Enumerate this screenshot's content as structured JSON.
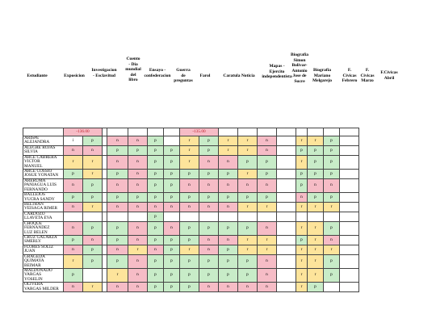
{
  "headers": [
    "Estudiante",
    "Exposicion",
    "Investigacion\n- Esclavitud",
    "Cuento\n- Dia\nmundial\ndel\nlibro",
    "Ensayo -\nconfederacion",
    "Guerra\nde\npreguntas",
    "Farol",
    "Caratula Noticia",
    "Mapas -\nEjercito\nindependentista",
    "Biografia\nSimon\nBolivar-\nAntonio\nJose de\nSucre",
    "Biografia\nMariano\nMelgarejo",
    "F.\nCivicas\nFebrero",
    "F.\nCivicas\nMarzo",
    "F.Civicas\nAbril"
  ],
  "balances": [
    "-136.00",
    "-135.00"
  ],
  "colors": {
    "p": "#c8ecc8",
    "r": "#fde49b",
    "n": "#f6bcc6",
    "negative_text": "#c0202a"
  },
  "rows": [
    {
      "name": [
        "ARISPE",
        "ALEJANDRA"
      ],
      "marks": [
        "i",
        "p",
        "",
        "n",
        "n",
        "p",
        "",
        "r",
        "p",
        "r",
        "r",
        "n",
        "",
        "r",
        "r",
        "p"
      ]
    },
    {
      "name": [
        "ALEGRE ROJAS",
        "SILVIA"
      ],
      "marks": [
        "n",
        "n",
        "",
        "p",
        "p",
        "p",
        "p",
        "r",
        "p",
        "r",
        "r",
        "n",
        "",
        "p",
        "p",
        "p"
      ]
    },
    {
      "name": [
        "ARCE CABRERA",
        "VICTOR",
        "MANUEL"
      ],
      "marks": [
        "r",
        "r",
        "",
        "n",
        "n",
        "p",
        "p",
        "r",
        "n",
        "n",
        "p",
        "p",
        "",
        "r",
        "p",
        "p"
      ]
    },
    {
      "name": [
        "ARCE COSSIO",
        "JOSUE YONATAN"
      ],
      "marks": [
        "p",
        "r",
        "",
        "p",
        "n",
        "p",
        "p",
        "p",
        "p",
        "p",
        "r",
        "p",
        "",
        "p",
        "p",
        "p"
      ]
    },
    {
      "name": [
        "ARERUMA",
        "PANIAGUA LUIS",
        "FERNANDO"
      ],
      "marks": [
        "n",
        "p",
        "",
        "n",
        "n",
        "p",
        "p",
        "n",
        "n",
        "n",
        "n",
        "n",
        "",
        "p",
        "n",
        "n"
      ]
    },
    {
      "name": [
        "BALLEJOS",
        "YUCRA SANDY"
      ],
      "marks": [
        "p",
        "p",
        "",
        "p",
        "p",
        "p",
        "p",
        "p",
        "p",
        "p",
        "p",
        "p",
        "",
        "n",
        "p",
        "p"
      ]
    },
    {
      "name": [
        "BELTRAN",
        "VEISAGA RIMER"
      ],
      "marks": [
        "n",
        "r",
        "",
        "n",
        "n",
        "n",
        "n",
        "n",
        "n",
        "n",
        "r",
        "r",
        "",
        "r",
        "r",
        "r"
      ]
    },
    {
      "name": [
        "CARDOZO",
        "LLAVETA EVA"
      ],
      "marks": [
        "",
        "",
        "",
        "",
        "",
        "p",
        "",
        "",
        "",
        "",
        "",
        "",
        "",
        "",
        "",
        ""
      ]
    },
    {
      "name": [
        "CHOQUE",
        "FERNANDEZ",
        "LUZ BELEN"
      ],
      "marks": [
        "n",
        "p",
        "",
        "p",
        "n",
        "p",
        "n",
        "p",
        "p",
        "p",
        "p",
        "n",
        "",
        "r",
        "r",
        "p"
      ]
    },
    {
      "name": [
        "CRUZ GALARZA",
        "SMERLY"
      ],
      "marks": [
        "p",
        "n",
        "",
        "p",
        "n",
        "p",
        "p",
        "p",
        "n",
        "n",
        "r",
        "r",
        "",
        "p",
        "r",
        "n"
      ]
    },
    {
      "name": [
        "FLORES SOLIZ",
        "JUAN"
      ],
      "marks": [
        "n",
        "p",
        "",
        "n",
        "r",
        "n",
        "p",
        "r",
        "n",
        "p",
        "r",
        "r",
        "",
        "r",
        "r",
        "r"
      ]
    },
    {
      "name": [
        "GRAGEDA",
        "QUIMAYA",
        "BEIMAR"
      ],
      "marks": [
        "r",
        "p",
        "",
        "p",
        "n",
        "p",
        "p",
        "p",
        "p",
        "p",
        "p",
        "n",
        "",
        "r",
        "r",
        "p"
      ]
    },
    {
      "name": [
        "MALDONADO",
        "VARGAS",
        "YOSELIN"
      ],
      "marks": [
        "p",
        "",
        "",
        "r",
        "n",
        "p",
        "p",
        "p",
        "p",
        "p",
        "p",
        "n",
        "",
        "r",
        "r",
        "p"
      ]
    },
    {
      "name": [
        "OLIVERA",
        "VARGAS MILDER"
      ],
      "marks": [
        "n",
        "r",
        "",
        "n",
        "n",
        "p",
        "p",
        "p",
        "n",
        "n",
        "n",
        "n",
        "",
        "r",
        "p",
        ""
      ]
    }
  ]
}
